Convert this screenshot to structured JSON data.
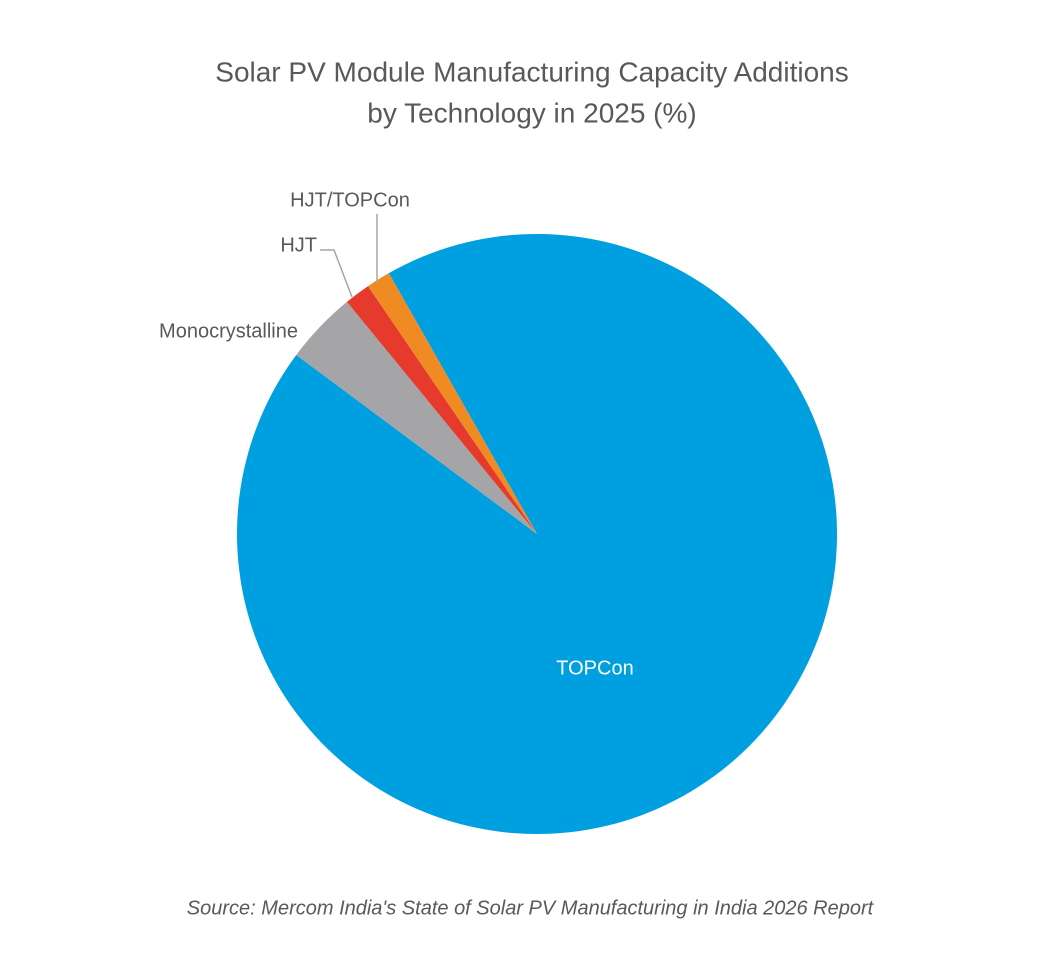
{
  "chart_data": {
    "type": "pie",
    "title": "Solar PV Module Manufacturing Capacity Additions",
    "subtitle": "by Technology in 2025 (%)",
    "categories": [
      "TOPCon",
      "Monocrystalline",
      "HJT",
      "HJT/TOPCon"
    ],
    "values": [
      93.4,
      3.9,
      1.4,
      1.3
    ],
    "colors": [
      "#009fdf",
      "#a5a5a7",
      "#e63a2c",
      "#ef8b22"
    ],
    "source": "Source: Mercom India's State of Solar PV Manufacturing in India 2026 Report"
  }
}
